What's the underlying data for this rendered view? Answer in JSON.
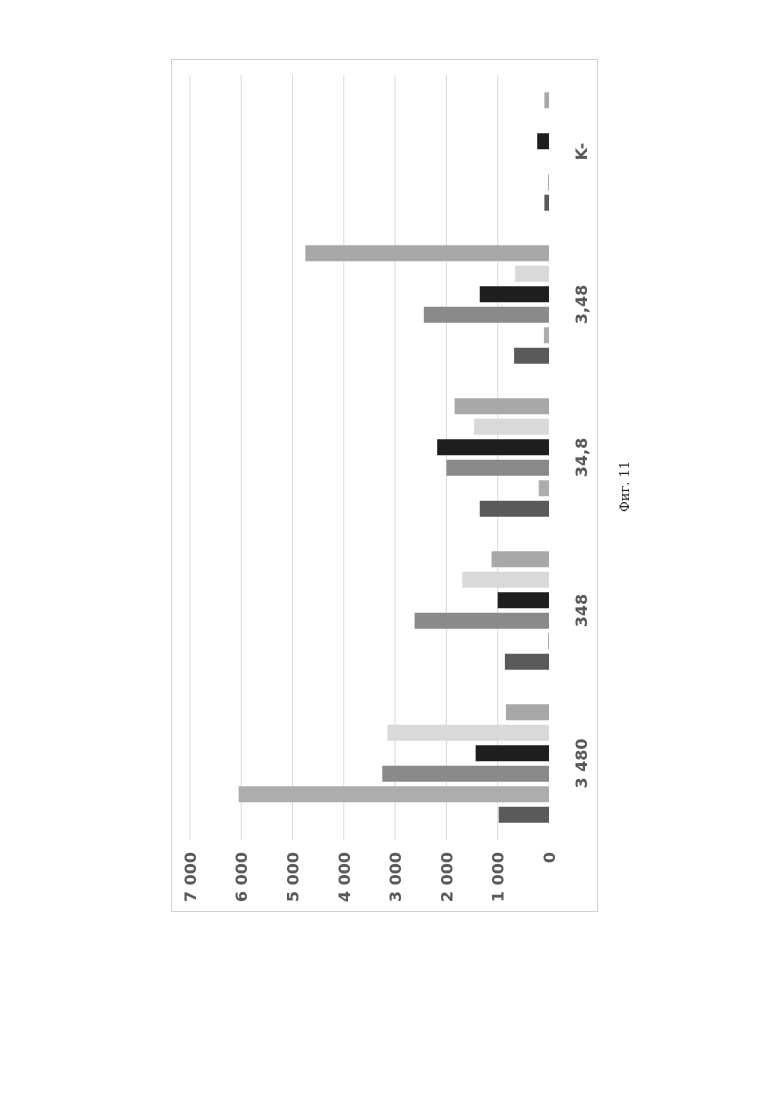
{
  "caption": "Фиг. 11",
  "chart_data": {
    "type": "bar",
    "orientation": "rotated-90",
    "categories": [
      "3 480",
      "348",
      "34,8",
      "3,48",
      "K-"
    ],
    "ylim": [
      0,
      7000
    ],
    "yticks": [
      "0",
      "1 000",
      "2 000",
      "3 000",
      "4 000",
      "5 000",
      "6 000",
      "7 000"
    ],
    "ytick_values": [
      0,
      1000,
      2000,
      3000,
      4000,
      5000,
      6000,
      7000
    ],
    "grid": true,
    "series": [
      {
        "color": "#5a5a5a",
        "values": [
          980,
          860,
          1350,
          680,
          90
        ]
      },
      {
        "color": "#adadad",
        "values": [
          6050,
          20,
          200,
          100,
          20
        ]
      },
      {
        "color": "#8a8a8a",
        "values": [
          3250,
          2620,
          2000,
          2440,
          0
        ]
      },
      {
        "color": "#1e1e1e",
        "values": [
          1430,
          1000,
          2180,
          1350,
          230
        ]
      },
      {
        "color": "#d9d9d9",
        "values": [
          3150,
          1690,
          1460,
          660,
          0
        ]
      },
      {
        "color": "#a8a8a8",
        "values": [
          840,
          1120,
          1840,
          4750,
          90
        ]
      }
    ]
  }
}
